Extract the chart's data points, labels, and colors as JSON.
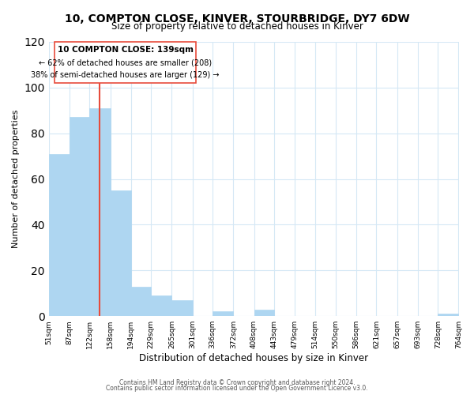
{
  "title": "10, COMPTON CLOSE, KINVER, STOURBRIDGE, DY7 6DW",
  "subtitle": "Size of property relative to detached houses in Kinver",
  "xlabel": "Distribution of detached houses by size in Kinver",
  "ylabel": "Number of detached properties",
  "bar_edges": [
    51,
    87,
    122,
    158,
    194,
    229,
    265,
    301,
    336,
    372,
    408,
    443,
    479,
    514,
    550,
    586,
    621,
    657,
    693,
    728,
    764
  ],
  "bar_heights": [
    71,
    87,
    91,
    55,
    13,
    9,
    7,
    0,
    2,
    0,
    3,
    0,
    0,
    0,
    0,
    0,
    0,
    0,
    0,
    1
  ],
  "bar_color": "#aed6f1",
  "property_line_x": 139,
  "property_line_color": "#e74c3c",
  "annotation_box_edge_color": "#e74c3c",
  "annotation_title": "10 COMPTON CLOSE: 139sqm",
  "annotation_line1": "← 62% of detached houses are smaller (208)",
  "annotation_line2": "38% of semi-detached houses are larger (129) →",
  "ylim": [
    0,
    120
  ],
  "yticks": [
    0,
    20,
    40,
    60,
    80,
    100,
    120
  ],
  "tick_labels": [
    "51sqm",
    "87sqm",
    "122sqm",
    "158sqm",
    "194sqm",
    "229sqm",
    "265sqm",
    "301sqm",
    "336sqm",
    "372sqm",
    "408sqm",
    "443sqm",
    "479sqm",
    "514sqm",
    "550sqm",
    "586sqm",
    "621sqm",
    "657sqm",
    "693sqm",
    "728sqm",
    "764sqm"
  ],
  "footer1": "Contains HM Land Registry data © Crown copyright and database right 2024.",
  "footer2": "Contains public sector information licensed under the Open Government Licence v3.0.",
  "bg_color": "#ffffff",
  "grid_color": "#d5e8f5"
}
